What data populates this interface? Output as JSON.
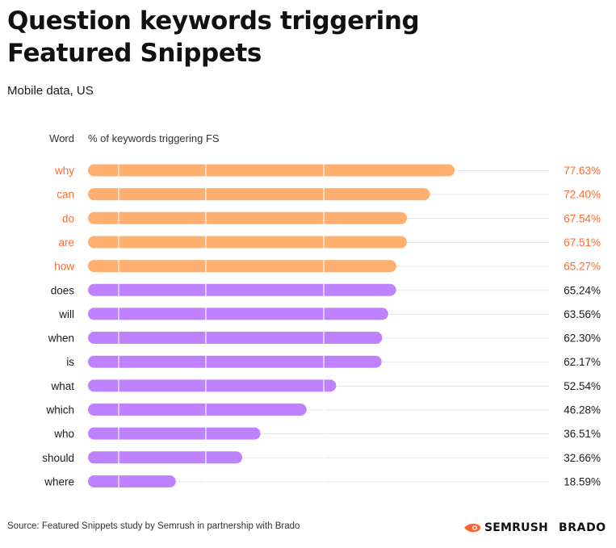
{
  "colors": {
    "highlight": "#FFB071",
    "highlight_text": "#FF6A2C",
    "regular": "#BF82FF",
    "regular_text": "#1a1a1a",
    "gridline": "#E6E6E6",
    "brand_semrush": "#FF642D"
  },
  "chart_data": {
    "type": "bar",
    "orientation": "horizontal",
    "title": "Question keywords triggering Featured Snippets",
    "subtitle": "Mobile data, US",
    "category_header": "Word",
    "value_header": "% of keywords triggering FS",
    "categories": [
      "why",
      "can",
      "do",
      "are",
      "how",
      "does",
      "will",
      "when",
      "is",
      "what",
      "which",
      "who",
      "should",
      "where"
    ],
    "values": [
      77.63,
      72.4,
      67.54,
      67.51,
      65.27,
      65.24,
      63.56,
      62.3,
      62.17,
      52.54,
      46.28,
      36.51,
      32.66,
      18.59
    ],
    "value_labels": [
      "77.63%",
      "72.40%",
      "67.54%",
      "67.51%",
      "65.27%",
      "65.24%",
      "63.56%",
      "62.30%",
      "62.17%",
      "52.54%",
      "46.28%",
      "36.51%",
      "32.66%",
      "18.59%"
    ],
    "highlighted": [
      true,
      true,
      true,
      true,
      true,
      false,
      false,
      false,
      false,
      false,
      false,
      false,
      false,
      false
    ],
    "xlim": [
      0,
      100
    ],
    "grid": true
  },
  "footer": {
    "source": "Source: Featured Snippets study by Semrush in partnership with Brado",
    "logo_semrush": "SEMRUSH",
    "logo_brado": "BRADO"
  }
}
